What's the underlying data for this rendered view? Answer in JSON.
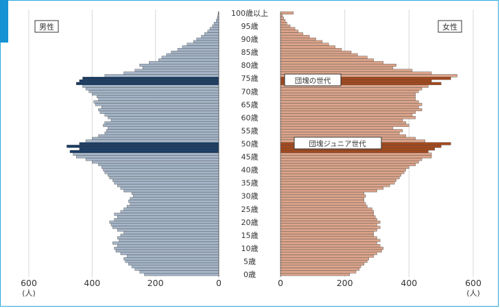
{
  "chart_data": {
    "type": "bar",
    "subtype": "population-pyramid",
    "left_panel_label": "男性",
    "right_panel_label": "女性",
    "x_ticks_left": [
      "600",
      "400",
      "200",
      "0"
    ],
    "x_ticks_right": [
      "0",
      "200",
      "400",
      "600"
    ],
    "x_unit": "(人)",
    "xlim": [
      0,
      600
    ],
    "age_tick_labels": [
      "0歳",
      "5歳",
      "10歳",
      "15歳",
      "20歳",
      "25歳",
      "30歳",
      "35歳",
      "40歳",
      "45歳",
      "50歳",
      "55歳",
      "60歳",
      "65歳",
      "70歳",
      "75歳",
      "80歳",
      "85歳",
      "90歳",
      "95歳",
      "100歳以上"
    ],
    "ages": [
      0,
      1,
      2,
      3,
      4,
      5,
      6,
      7,
      8,
      9,
      10,
      11,
      12,
      13,
      14,
      15,
      16,
      17,
      18,
      19,
      20,
      21,
      22,
      23,
      24,
      25,
      26,
      27,
      28,
      29,
      30,
      31,
      32,
      33,
      34,
      35,
      36,
      37,
      38,
      39,
      40,
      41,
      42,
      43,
      44,
      45,
      46,
      47,
      48,
      49,
      50,
      51,
      52,
      53,
      54,
      55,
      56,
      57,
      58,
      59,
      60,
      61,
      62,
      63,
      64,
      65,
      66,
      67,
      68,
      69,
      70,
      71,
      72,
      73,
      74,
      75,
      76,
      77,
      78,
      79,
      80,
      81,
      82,
      83,
      84,
      85,
      86,
      87,
      88,
      89,
      90,
      91,
      92,
      93,
      94,
      95,
      96,
      97,
      98,
      99,
      100
    ],
    "series": [
      {
        "name": "男性",
        "values": [
          235,
          250,
          265,
          275,
          285,
          295,
          300,
          290,
          310,
          325,
          330,
          320,
          335,
          315,
          320,
          310,
          300,
          320,
          335,
          340,
          345,
          330,
          320,
          330,
          310,
          300,
          290,
          280,
          285,
          280,
          270,
          275,
          300,
          310,
          320,
          330,
          335,
          345,
          350,
          360,
          365,
          370,
          380,
          400,
          420,
          450,
          460,
          470,
          440,
          480,
          440,
          420,
          400,
          380,
          360,
          355,
          350,
          365,
          360,
          340,
          350,
          360,
          375,
          380,
          370,
          390,
          395,
          380,
          385,
          400,
          410,
          420,
          430,
          450,
          440,
          430,
          360,
          300,
          265,
          240,
          250,
          220,
          190,
          180,
          165,
          150,
          130,
          115,
          100,
          80,
          70,
          55,
          45,
          35,
          28,
          20,
          15,
          8,
          5,
          3,
          2
        ]
      },
      {
        "name": "女性",
        "values": [
          215,
          235,
          245,
          250,
          260,
          270,
          275,
          290,
          300,
          315,
          320,
          310,
          300,
          310,
          300,
          290,
          290,
          300,
          310,
          300,
          310,
          300,
          295,
          290,
          290,
          285,
          270,
          265,
          260,
          260,
          265,
          260,
          300,
          320,
          340,
          355,
          360,
          370,
          375,
          385,
          390,
          400,
          420,
          430,
          440,
          470,
          470,
          460,
          480,
          500,
          530,
          450,
          420,
          390,
          370,
          380,
          350,
          400,
          390,
          380,
          420,
          410,
          420,
          440,
          430,
          440,
          430,
          420,
          420,
          420,
          430,
          440,
          460,
          500,
          470,
          530,
          550,
          470,
          410,
          350,
          360,
          320,
          290,
          270,
          240,
          220,
          190,
          170,
          150,
          130,
          110,
          90,
          70,
          55,
          45,
          30,
          20,
          15,
          10,
          6,
          40
        ]
      }
    ],
    "highlight_bands": [
      {
        "label": "団塊の世代",
        "age_from": 73,
        "age_to": 75
      },
      {
        "label": "団塊ジュニア世代",
        "age_from": 47,
        "age_to": 50
      }
    ],
    "colors": {
      "male": "#a5b5c8",
      "male_highlight": "#1a3c64",
      "female": "#dba48a",
      "female_highlight": "#a5491c",
      "grid": "#d8d8d8",
      "frame": "#2aa6df"
    }
  }
}
